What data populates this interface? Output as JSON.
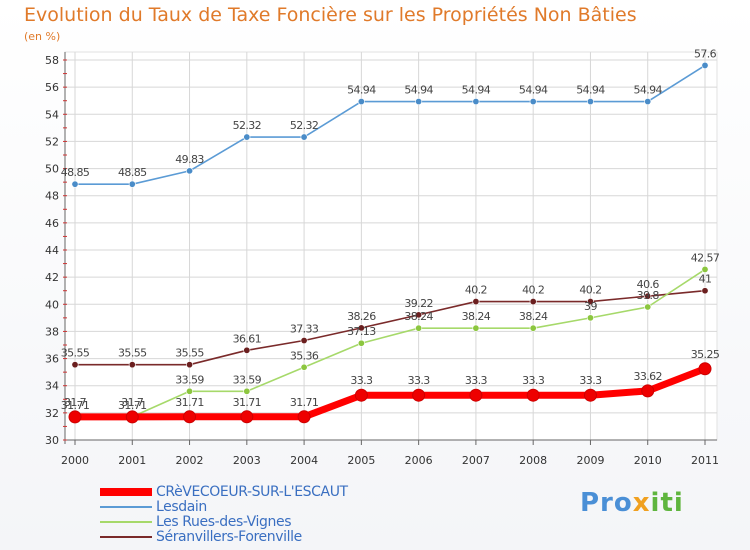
{
  "header": {
    "title": "Evolution du Taux de Taxe Foncière sur les Propriétés Non Bâties",
    "unit": "(en %)"
  },
  "logo": {
    "text": "Proxiti"
  },
  "colors": {
    "title": "#e07a2a",
    "legend_text": "#3a6fc1",
    "grid": "#d7d7d7"
  },
  "chart_data": {
    "type": "line",
    "x": [
      "2000",
      "2001",
      "2002",
      "2003",
      "2004",
      "2005",
      "2006",
      "2007",
      "2008",
      "2009",
      "2010",
      "2011"
    ],
    "ylim": [
      30,
      58
    ],
    "yticks": [
      30,
      32,
      34,
      36,
      38,
      40,
      42,
      44,
      46,
      48,
      50,
      52,
      54,
      56,
      58
    ],
    "grid": true,
    "legend_position": "bottom-left",
    "series": [
      {
        "name": "Lesdain",
        "color": "#5b9bd5",
        "marker": "#4a8cc8",
        "width": 1.6,
        "values": [
          48.85,
          48.85,
          49.83,
          52.32,
          52.32,
          54.94,
          54.94,
          54.94,
          54.94,
          54.94,
          54.94,
          57.6
        ],
        "labels": [
          "48.85",
          "48.85",
          "49.83",
          "52.32",
          "52.32",
          "54.94",
          "54.94",
          "54.94",
          "54.94",
          "54.94",
          "54.94",
          "57.6"
        ]
      },
      {
        "name": "Séranvillers-Forenville",
        "color": "#7a2a2a",
        "marker": "#6b1f1f",
        "width": 1.6,
        "values": [
          35.55,
          35.55,
          35.55,
          36.61,
          37.33,
          38.26,
          39.22,
          40.2,
          40.2,
          40.2,
          40.6,
          41
        ],
        "labels": [
          "35.55",
          "35.55",
          "35.55",
          "36.61",
          "37.33",
          "38.26",
          "39.22",
          "40.2",
          "40.2",
          "40.2",
          "40.6",
          "41"
        ]
      },
      {
        "name": "Les Rues-des-Vignes",
        "color": "#a6d96a",
        "marker": "#8cc63f",
        "width": 1.6,
        "values": [
          31.71,
          31.71,
          33.59,
          33.59,
          35.36,
          37.13,
          38.24,
          38.24,
          38.24,
          39,
          39.8,
          42.57
        ],
        "labels": [
          "31.71",
          "31.71",
          "33.59",
          "33.59",
          "35.36",
          "37.13",
          "38.24",
          "38.24",
          "38.24",
          "39",
          "39.8",
          "42.57"
        ]
      },
      {
        "name": "CRèVECOEUR-SUR-L'ESCAUT",
        "color": "#ff0000",
        "marker": "#ee0000",
        "width": 7,
        "values": [
          31.7,
          31.7,
          31.71,
          31.71,
          31.71,
          33.3,
          33.3,
          33.3,
          33.3,
          33.3,
          33.62,
          35.25
        ],
        "labels": [
          "31.7",
          "31.7",
          "31.71",
          "31.71",
          "31.71",
          "33.3",
          "33.3",
          "33.3",
          "33.3",
          "33.3",
          "33.62",
          "35.25"
        ]
      }
    ],
    "legend_order": [
      "CRèVECOEUR-SUR-L'ESCAUT",
      "Lesdain",
      "Les Rues-des-Vignes",
      "Séranvillers-Forenville"
    ]
  }
}
